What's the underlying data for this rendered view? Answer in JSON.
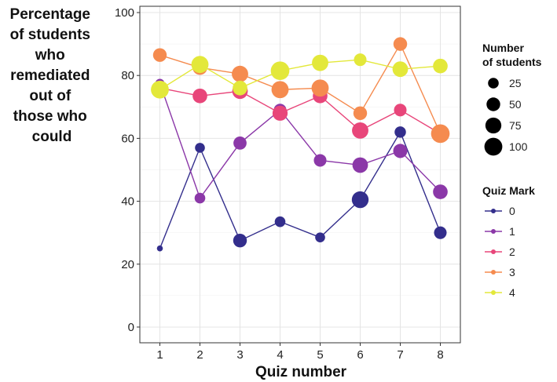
{
  "chart_data": {
    "type": "line",
    "ylabel_lines": [
      "Percentage",
      "of students",
      "who",
      "remediated",
      "out of",
      "those who",
      "could"
    ],
    "xlabel": "Quiz number",
    "x": [
      1,
      2,
      3,
      4,
      5,
      6,
      7,
      8
    ],
    "xticks": [
      "1",
      "2",
      "3",
      "4",
      "5",
      "6",
      "7",
      "8"
    ],
    "yticks": [
      "0",
      "20",
      "40",
      "60",
      "80",
      "100"
    ],
    "ylim": [
      0,
      100
    ],
    "grid": true,
    "legend_position": "right",
    "size_legend": {
      "title_lines": [
        "Number",
        "of students"
      ],
      "entries": [
        {
          "label": "25",
          "value": 25
        },
        {
          "label": "50",
          "value": 50
        },
        {
          "label": "75",
          "value": 75
        },
        {
          "label": "100",
          "value": 100
        }
      ]
    },
    "color_legend": {
      "title": "Quiz Mark"
    },
    "series": [
      {
        "name": "0",
        "color": "#332e8c",
        "values": [
          25,
          57,
          27.5,
          33.5,
          28.5,
          40.5,
          62,
          30
        ],
        "sizes": [
          3,
          20,
          50,
          25,
          20,
          85,
          30,
          40
        ]
      },
      {
        "name": "1",
        "color": "#8b38a8",
        "values": [
          77.5,
          41,
          58.5,
          69,
          53,
          51.5,
          56,
          43
        ],
        "sizes": [
          15,
          25,
          45,
          40,
          40,
          70,
          55,
          60
        ]
      },
      {
        "name": "2",
        "color": "#e8467a",
        "values": [
          76,
          73.5,
          75,
          68,
          73.5,
          62.5,
          69,
          61.5
        ],
        "sizes": [
          30,
          60,
          70,
          65,
          60,
          80,
          40,
          70
        ]
      },
      {
        "name": "3",
        "color": "#f58b4f",
        "values": [
          86.5,
          82.5,
          80.5,
          75.5,
          76,
          68,
          90,
          61.5
        ],
        "sizes": [
          50,
          60,
          80,
          90,
          90,
          50,
          50,
          110
        ]
      },
      {
        "name": "4",
        "color": "#e3e83a",
        "values": [
          75.5,
          83.5,
          76,
          81.5,
          84,
          85,
          82,
          83
        ],
        "sizes": [
          100,
          90,
          60,
          110,
          80,
          40,
          70,
          60
        ]
      }
    ]
  }
}
